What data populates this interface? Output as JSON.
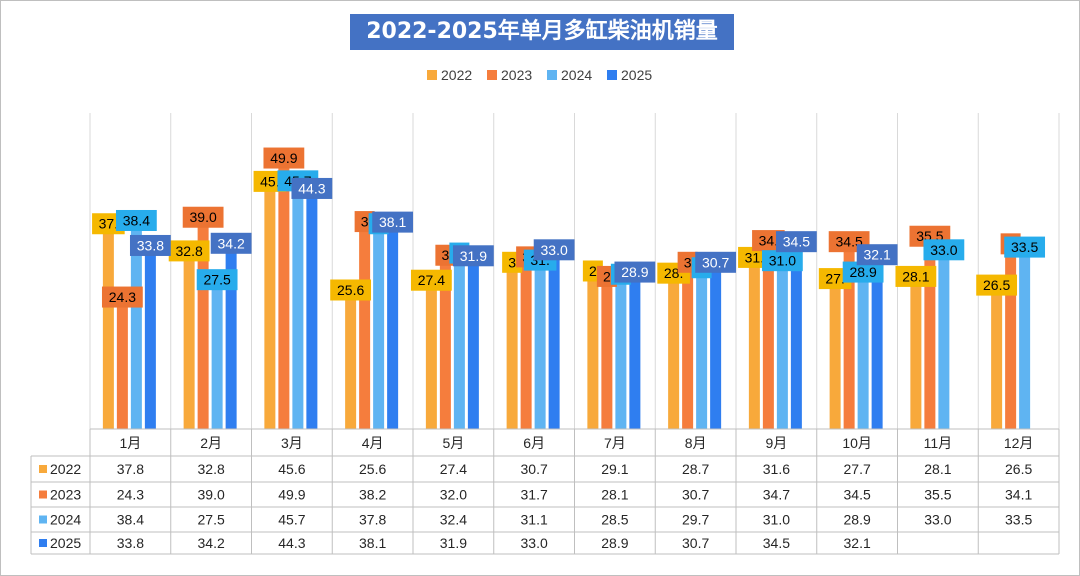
{
  "chart_data": {
    "type": "bar",
    "title": "2022-2025年单月多缸柴油机销量",
    "categories": [
      "1月",
      "2月",
      "3月",
      "4月",
      "5月",
      "6月",
      "7月",
      "8月",
      "9月",
      "10月",
      "11月",
      "12月"
    ],
    "ylim": [
      0,
      70
    ],
    "grid": "vertical",
    "legend_position": "top-center",
    "series": [
      {
        "name": "2022",
        "color": "#f8a93b",
        "label_bg": "#f5b800",
        "values": [
          37.8,
          32.8,
          45.6,
          25.6,
          27.4,
          30.7,
          29.1,
          28.7,
          31.6,
          27.7,
          28.1,
          26.5
        ]
      },
      {
        "name": "2023",
        "color": "#f57d3d",
        "label_bg": "#ec7332",
        "values": [
          24.3,
          39.0,
          49.9,
          38.2,
          32.0,
          31.7,
          28.1,
          30.7,
          34.7,
          34.5,
          35.5,
          34.1
        ]
      },
      {
        "name": "2024",
        "color": "#5fb4f2",
        "label_bg": "#27acec",
        "values": [
          38.4,
          27.5,
          45.7,
          37.8,
          32.4,
          31.1,
          28.5,
          29.7,
          31.0,
          28.9,
          33.0,
          33.5
        ]
      },
      {
        "name": "2025",
        "color": "#2f7ef0",
        "label_bg": "#4472c4",
        "values": [
          33.8,
          34.2,
          44.3,
          38.1,
          31.9,
          33.0,
          28.9,
          30.7,
          34.5,
          32.1,
          null,
          null
        ]
      }
    ],
    "table_rows": [
      [
        "37.8",
        "32.8",
        "45.6",
        "25.6",
        "27.4",
        "30.7",
        "29.1",
        "28.7",
        "31.6",
        "27.7",
        "28.1",
        "26.5"
      ],
      [
        "24.3",
        "39.0",
        "49.9",
        "38.2",
        "32.0",
        "31.7",
        "28.1",
        "30.7",
        "34.7",
        "34.5",
        "35.5",
        "34.1"
      ],
      [
        "38.4",
        "27.5",
        "45.7",
        "37.8",
        "32.4",
        "31.1",
        "28.5",
        "29.7",
        "31.0",
        "28.9",
        "33.0",
        "33.5"
      ],
      [
        "33.8",
        "34.2",
        "44.3",
        "38.1",
        "31.9",
        "33.0",
        "28.9",
        "30.7",
        "34.5",
        "32.1",
        "",
        ""
      ]
    ],
    "data_labels": [
      [
        "37.",
        "32.8",
        "45.",
        "25.6",
        "27.4",
        "3",
        "2",
        "28.",
        "31.",
        "27.",
        "28.1",
        "26.5"
      ],
      [
        "24.3",
        "39.0",
        "49.9",
        "3",
        "3",
        "3",
        "2",
        "3",
        "34.",
        "34.5",
        "35.5",
        "3"
      ],
      [
        "38.4",
        "27.5",
        "45.7",
        "3",
        "3",
        "31.",
        "2",
        "2",
        "31.0",
        "28.9",
        "33.0",
        "33.5"
      ],
      [
        "33.8",
        "34.2",
        "44.3",
        "38.1",
        "31.9",
        "33.0",
        "28.9",
        "30.7",
        "34.5",
        "32.1",
        "",
        ""
      ]
    ]
  }
}
